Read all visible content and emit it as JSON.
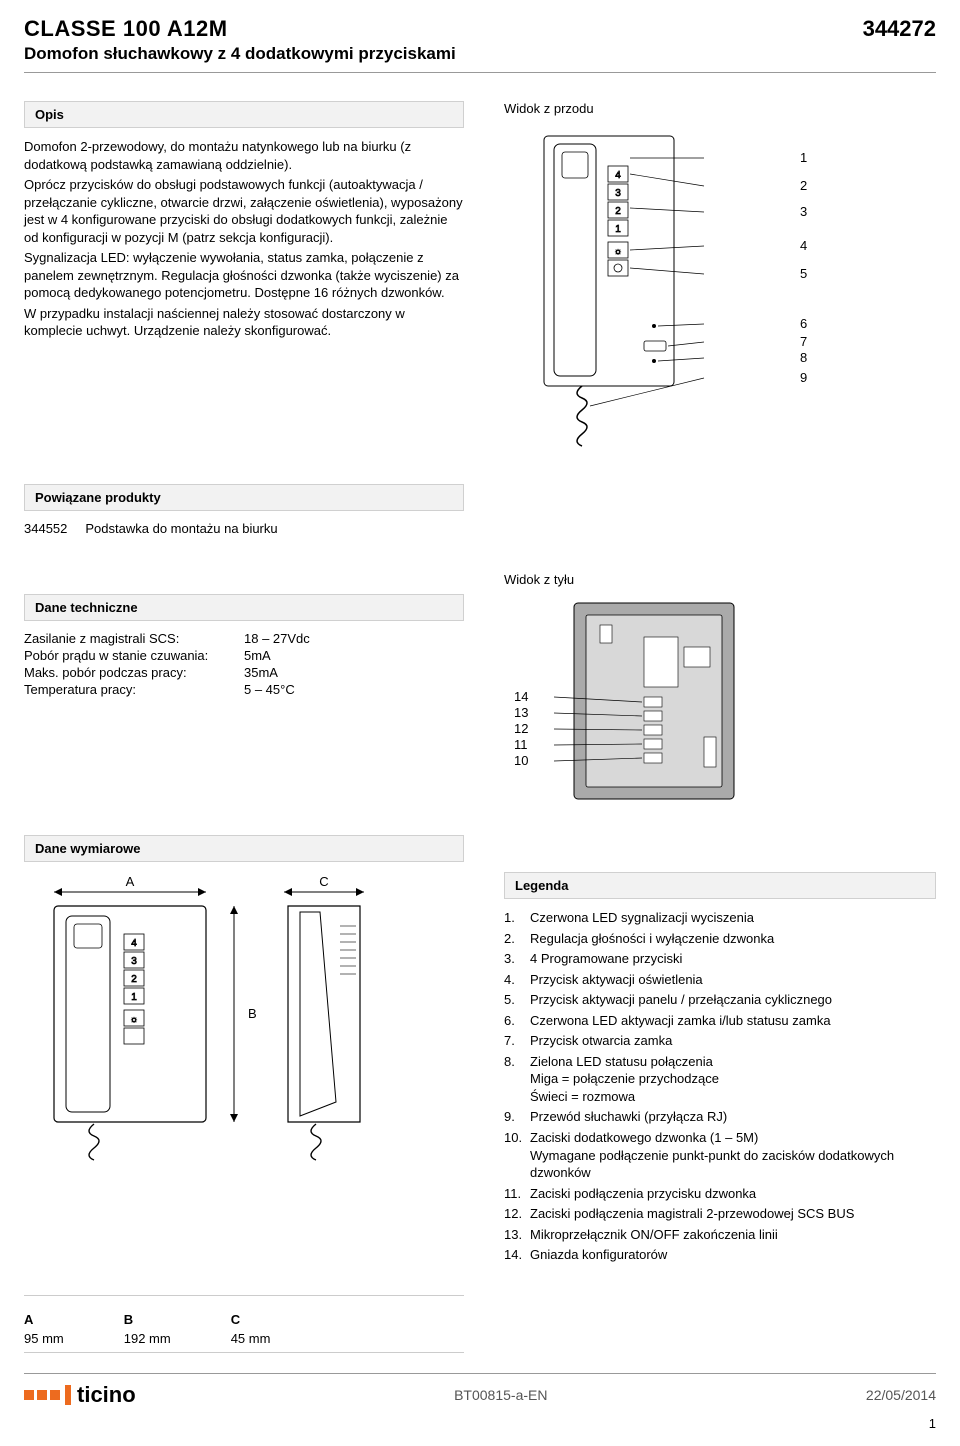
{
  "header": {
    "model": "CLASSE 100 A12M",
    "subtitle": "Domofon słuchawkowy z 4 dodatkowymi przyciskami",
    "partno": "344272"
  },
  "opis": {
    "heading": "Opis",
    "p1": "Domofon 2-przewodowy, do montażu natynkowego lub na biurku (z dodatkową podstawką zamawianą oddzielnie).",
    "p2": "Oprócz przycisków do obsługi podstawowych funkcji (autoaktywacja / przełączanie cykliczne, otwarcie drzwi, załączenie oświetlenia), wyposażony jest w 4 konfigurowane przyciski do obsługi dodatkowych funkcji, zależnie od konfiguracji w pozycji M (patrz sekcja konfiguracji).",
    "p3": "Sygnalizacja LED: wyłączenie wywołania, status zamka, połączenie z panelem zewnętrznym. Regulacja głośności dzwonka (także wyciszenie) za pomocą dedykowanego potencjometru. Dostępne 16 różnych dzwonków.",
    "p4": "W przypadku instalacji naściennej należy stosować dostarczony w komplecie uchwyt. Urządzenie należy skonfigurować."
  },
  "widok_przodu_label": "Widok z przodu",
  "front_callouts": [
    "1",
    "2",
    "3",
    "4",
    "5",
    "6",
    "7",
    "8",
    "9"
  ],
  "front_button_nums": [
    "4",
    "3",
    "2",
    "1"
  ],
  "powiazane": {
    "heading": "Powiązane produkty",
    "code": "344552",
    "desc": "Podstawka do montażu na biurku"
  },
  "widok_tylu_label": "Widok z tyłu",
  "rear_callouts": [
    "14",
    "13",
    "12",
    "11",
    "10"
  ],
  "dane_techniczne": {
    "heading": "Dane techniczne",
    "rows": [
      {
        "label": "Zasilanie z magistrali SCS:",
        "value": "18 – 27Vdc"
      },
      {
        "label": "Pobór prądu w stanie czuwania:",
        "value": "5mA"
      },
      {
        "label": "Maks. pobór podczas pracy:",
        "value": "35mA"
      },
      {
        "label": "Temperatura pracy:",
        "value": "5 – 45°C"
      }
    ]
  },
  "dane_wymiarowe_heading": "Dane wymiarowe",
  "dim_letters": {
    "A": "A",
    "B": "B",
    "C": "C"
  },
  "dim_table": {
    "A": "95 mm",
    "B": "192 mm",
    "C": "45 mm"
  },
  "legenda": {
    "heading": "Legenda",
    "items": [
      {
        "n": "1.",
        "t": "Czerwona LED sygnalizacji wyciszenia"
      },
      {
        "n": "2.",
        "t": "Regulacja głośności i wyłączenie dzwonka"
      },
      {
        "n": "3.",
        "t": "4 Programowane przyciski"
      },
      {
        "n": "4.",
        "t": "Przycisk aktywacji oświetlenia"
      },
      {
        "n": "5.",
        "t": "Przycisk aktywacji panelu / przełączania cyklicznego"
      },
      {
        "n": "6.",
        "t": "Czerwona LED aktywacji zamka i/lub statusu zamka"
      },
      {
        "n": "7.",
        "t": "Przycisk otwarcia zamka"
      },
      {
        "n": "8.",
        "t": "Zielona LED statusu połączenia\nMiga = połączenie przychodzące\nŚwieci = rozmowa"
      },
      {
        "n": "9.",
        "t": "Przewód słuchawki (przyłącza RJ)"
      },
      {
        "n": "10.",
        "t": "Zaciski dodatkowego dzwonka (1 – 5M)\nWymagane podłączenie punkt-punkt do zacisków dodatkowych dzwonków"
      },
      {
        "n": "11.",
        "t": "Zaciski podłączenia przycisku dzwonka"
      },
      {
        "n": "12.",
        "t": "Zaciski podłączenia magistrali 2-przewodowej SCS BUS"
      },
      {
        "n": "13.",
        "t": "Mikroprzełącznik ON/OFF zakończenia linii"
      },
      {
        "n": "14.",
        "t": "Gniazda konfiguratorów"
      }
    ]
  },
  "footer": {
    "docref": "BT00815-a-EN",
    "date": "22/05/2014",
    "pageno": "1",
    "brand_text": "ticino"
  },
  "colors": {
    "border": "#999999",
    "headerbg": "#f2f2f2",
    "orange": "#ed6b1f",
    "grey_text": "#555555",
    "line": "#000000"
  }
}
